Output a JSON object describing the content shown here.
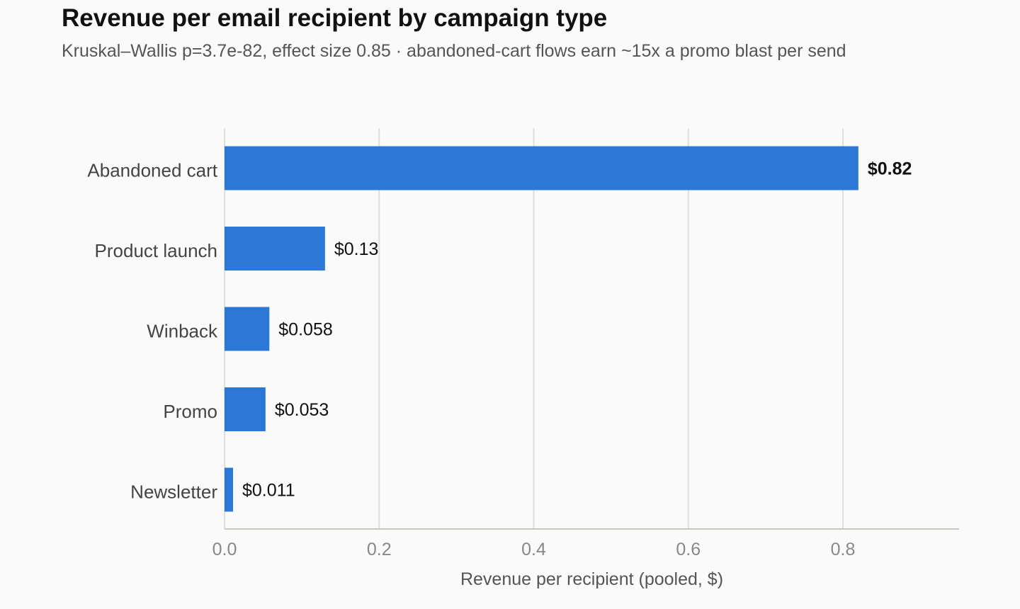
{
  "chart_data": {
    "type": "bar",
    "orientation": "horizontal",
    "title": "Revenue per email recipient by campaign type",
    "subtitle": "Kruskal–Wallis p=3.7e-82, effect size 0.85 · abandoned-cart flows earn ~15x a promo blast per send",
    "categories": [
      "Abandoned cart",
      "Product launch",
      "Winback",
      "Promo",
      "Newsletter"
    ],
    "values": [
      0.82,
      0.13,
      0.058,
      0.053,
      0.011
    ],
    "value_labels": [
      "$0.82",
      "$0.13",
      "$0.058",
      "$0.053",
      "$0.011"
    ],
    "xlabel": "Revenue per recipient (pooled, $)",
    "ylabel": "",
    "xlim": [
      0,
      0.95
    ],
    "xticks": [
      0.0,
      0.2,
      0.4,
      0.6,
      0.8
    ],
    "xtick_labels": [
      "0.0",
      "0.2",
      "0.4",
      "0.6",
      "0.8"
    ],
    "grid": "vertical",
    "legend": "none",
    "highlight_category": "Abandoned cart",
    "colors": {
      "bar": "#2b78d6",
      "grid": "#e0e0d8",
      "axis": "#c8c8c0",
      "background": "#fafafa"
    }
  }
}
